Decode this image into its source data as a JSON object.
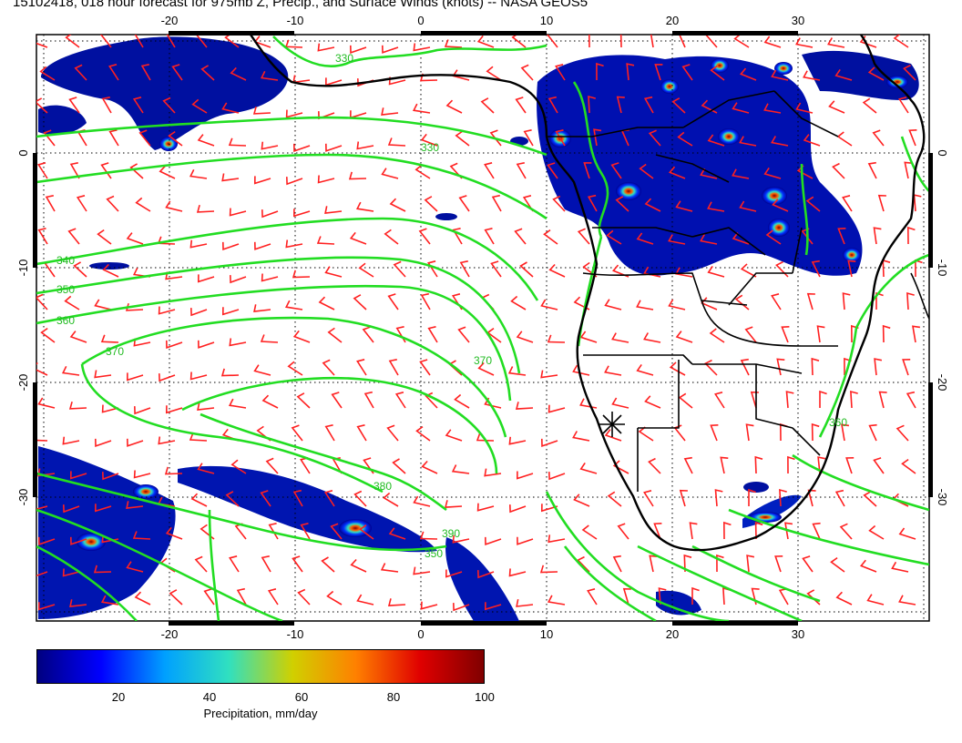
{
  "title": "15102418, 018 hour forecast for 975mb Z, Precip., and Surface Winds (knots) -- NASA GEOS5",
  "map": {
    "lon_ticks": [
      "-20",
      "-10",
      "0",
      "10",
      "20",
      "30"
    ],
    "lat_ticks": [
      "0",
      "-10",
      "-20",
      "-30"
    ],
    "contour_color": "#22dd22",
    "barb_color": "#ff2020",
    "coast_color": "#000000",
    "contour_labels": [
      "330",
      "340",
      "350",
      "360",
      "370",
      "380",
      "390",
      "350",
      "370",
      "360",
      "330"
    ]
  },
  "colorbar": {
    "ticks": [
      "20",
      "40",
      "60",
      "80",
      "100"
    ],
    "title": "Precipitation, mm/day",
    "colors": [
      "#000080",
      "#0000ff",
      "#00a0ff",
      "#30e0c0",
      "#d0d000",
      "#ff8000",
      "#e00000",
      "#800000"
    ]
  }
}
